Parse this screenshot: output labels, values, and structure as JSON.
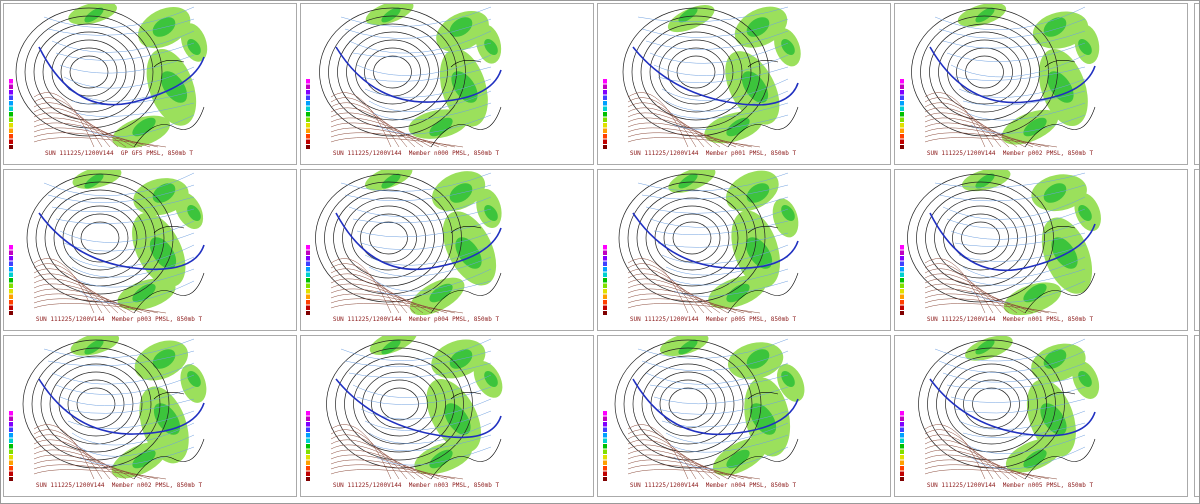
{
  "panels": [
    {
      "caption": "SUN 111225/1200V144  GP GFS PMSL, 850mb T"
    },
    {
      "caption": "SUN 111225/1200V144  Member n000 PMSL, 850mb T"
    },
    {
      "caption": "SUN 111225/1200V144  Member p001 PMSL, 850mb T"
    },
    {
      "caption": "SUN 111225/1200V144  Member p002 PMSL, 850mb T"
    },
    {
      "caption": "SUN 111225/1200V144  Member p003 PMSL, 850mb T"
    },
    {
      "caption": "SUN 111225/1200V144  Member p004 PMSL, 850mb T"
    },
    {
      "caption": "SUN 111225/1200V144  Member p005 PMSL, 850mb T"
    },
    {
      "caption": "SUN 111225/1200V144  Member n001 PMSL, 850mb T"
    },
    {
      "caption": "SUN 111225/1200V144  Member n002 PMSL, 850mb T"
    },
    {
      "caption": "SUN 111225/1200V144  Member n003 PMSL, 850mb T"
    },
    {
      "caption": "SUN 111225/1200V144  Member n004 PMSL, 850mb T"
    },
    {
      "caption": "SUN 111225/1200V144  Member n005 PMSL, 850mb T"
    }
  ]
}
